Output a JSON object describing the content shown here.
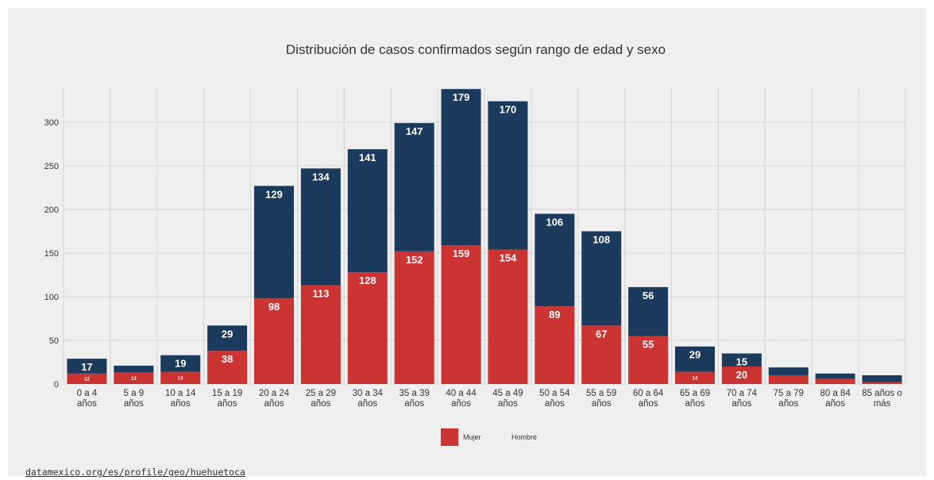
{
  "chart_data": {
    "type": "bar",
    "stacked": true,
    "title": "Distribución de casos confirmados según rango de edad y sexo",
    "xlabel": "",
    "ylabel": "",
    "ylim": [
      0,
      340
    ],
    "yticks": [
      0,
      50,
      100,
      150,
      200,
      250,
      300
    ],
    "grid": true,
    "legend_position": "bottom",
    "categories": [
      "0 a 4 años",
      "5 a 9 años",
      "10 a 14 años",
      "15 a 19 años",
      "20 a 24 años",
      "25 a 29 años",
      "30 a 34 años",
      "35 a 39 años",
      "40 a 44 años",
      "45 a 49 años",
      "50 a 54 años",
      "55 a 59 años",
      "60 a 64 años",
      "65 a 69 años",
      "70 a 74 años",
      "75 a 79 años",
      "80 a 84 años",
      "85 años o más"
    ],
    "series": [
      {
        "name": "Mujer",
        "color": "#cc3333",
        "values": [
          12,
          13,
          14,
          38,
          98,
          113,
          128,
          152,
          159,
          154,
          89,
          67,
          55,
          14,
          20,
          10,
          6,
          2
        ]
      },
      {
        "name": "Hombre",
        "color": "#1b3a5c",
        "values": [
          17,
          8,
          19,
          29,
          129,
          134,
          141,
          147,
          179,
          170,
          106,
          108,
          56,
          29,
          15,
          9,
          6,
          8
        ]
      }
    ],
    "data_labels": {
      "Mujer": [
        "12",
        "13",
        "14",
        "38",
        "98",
        "113",
        "128",
        "152",
        "159",
        "154",
        "89",
        "67",
        "55",
        "14",
        "20",
        "",
        "",
        ""
      ],
      "Hombre": [
        "17",
        "",
        "19",
        "29",
        "129",
        "134",
        "141",
        "147",
        "179",
        "170",
        "106",
        "108",
        "56",
        "29",
        "15",
        "",
        "",
        ""
      ]
    }
  },
  "footer": {
    "source_link": "datamexico.org/es/profile/geo/huehuetoca"
  }
}
